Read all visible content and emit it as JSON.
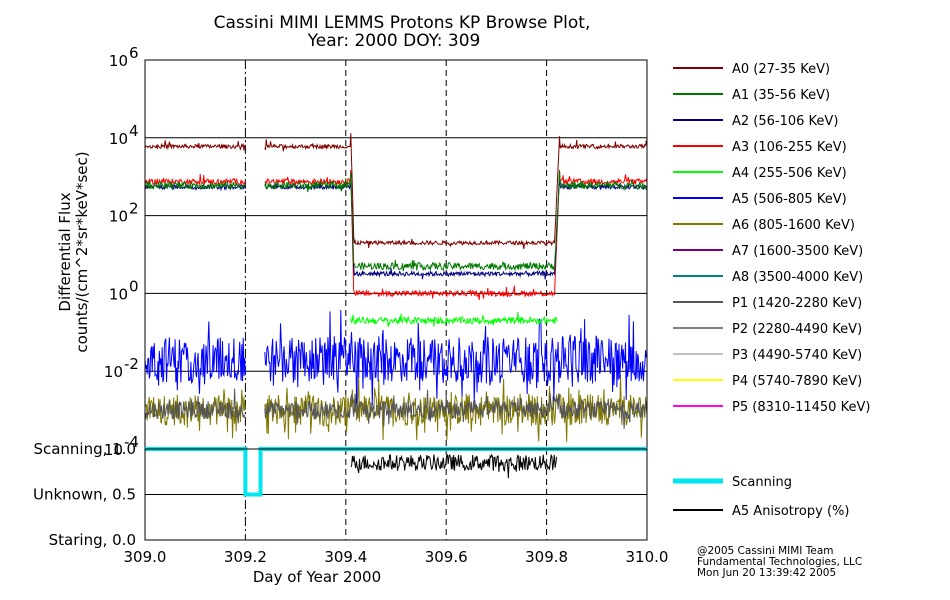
{
  "chart_data": [
    {
      "type": "line",
      "title": "Cassini MIMI LEMMS Protons KP Browse Plot,",
      "subtitle": "Year: 2000 DOY: 309",
      "xlabel": "Day of Year 2000",
      "ylabel": "Differential Flux",
      "ylabel2": "counts/(cm^2*sr*keV*sec)",
      "xlim": [
        309.0,
        310.0
      ],
      "ylim_log10": [
        -4,
        6
      ],
      "y_scale": "log",
      "x_ticks": [
        "309.0",
        "309.2",
        "309.4",
        "309.6",
        "309.8",
        "310.0"
      ],
      "y_ticks": [
        {
          "base": "10",
          "exp": "6"
        },
        {
          "base": "10",
          "exp": "4"
        },
        {
          "base": "10",
          "exp": "2"
        },
        {
          "base": "10",
          "exp": "0"
        },
        {
          "base": "10",
          "exp": "-2"
        },
        {
          "base": "10",
          "exp": "-4"
        }
      ],
      "grid": true,
      "vertical_dashed_lines_x": [
        309.2,
        309.4,
        309.6,
        309.8
      ],
      "data_gap_x": [
        309.2,
        309.23
      ],
      "transition_x": [
        309.41,
        309.82
      ],
      "legend_placement": "right",
      "series": [
        {
          "name": "A0 (27-35 KeV)",
          "color": "#800000",
          "outside_level": 6000,
          "inside_level": 20
        },
        {
          "name": "A1 (35-56 KeV)",
          "color": "#007800",
          "outside_level": 600,
          "inside_level": 5
        },
        {
          "name": "A2 (56-106 KeV)",
          "color": "#000080",
          "outside_level": 550,
          "inside_level": 3.2
        },
        {
          "name": "A3 (106-255 KeV)",
          "color": "#ff0000",
          "outside_level": 750,
          "inside_level": 1
        },
        {
          "name": "A4 (255-506 KeV)",
          "color": "#00ff00",
          "outside_level": null,
          "inside_level": 0.2
        },
        {
          "name": "A5 (506-805 KeV)",
          "color": "#0000ff",
          "outside_level": 0.02,
          "inside_level": 0.02
        },
        {
          "name": "A6 (805-1600 KeV)",
          "color": "#807800",
          "outside_level": 0.001,
          "inside_level": 0.001
        },
        {
          "name": "A7 (1600-3500 KeV)",
          "color": "#800080",
          "outside_level": null,
          "inside_level": null
        },
        {
          "name": "A8 (3500-4000 KeV)",
          "color": "#008080",
          "outside_level": null,
          "inside_level": null
        },
        {
          "name": "P1 (1420-2280 KeV)",
          "color": "#555555",
          "outside_level": 0.001,
          "inside_level": 0.001
        },
        {
          "name": "P2 (2280-4490 KeV)",
          "color": "#808080",
          "outside_level": null,
          "inside_level": null
        },
        {
          "name": "P3 (4490-5740 KeV)",
          "color": "#c0c0c0",
          "outside_level": null,
          "inside_level": null
        },
        {
          "name": "P4 (5740-7890 KeV)",
          "color": "#ffff00",
          "outside_level": null,
          "inside_level": null
        },
        {
          "name": "P5 (8310-11450 KeV)",
          "color": "#ff00ff",
          "outside_level": null,
          "inside_level": null
        }
      ]
    },
    {
      "type": "line",
      "xlim": [
        309.0,
        310.0
      ],
      "ylim": [
        0.0,
        1.0
      ],
      "y_ticks": [
        "Scanning, 1.0",
        "Unknown, 0.5",
        "Staring, 0.0"
      ],
      "x_ticks": [
        "309.0",
        "309.2",
        "309.4",
        "309.6",
        "309.8",
        "310.0"
      ],
      "xlabel": "Day of Year 2000",
      "series": [
        {
          "name": "Scanning",
          "color": "#00e5ee",
          "points": [
            [
              309.0,
              1.0
            ],
            [
              309.2,
              1.0
            ],
            [
              309.2,
              0.5
            ],
            [
              309.23,
              0.5
            ],
            [
              309.23,
              1.0
            ],
            [
              310.0,
              1.0
            ]
          ]
        },
        {
          "name": "A5 Anisotropy (%)",
          "color": "#000000",
          "x_range": [
            309.41,
            309.82
          ],
          "mean_value": 0.85
        }
      ]
    }
  ],
  "credit": {
    "line1": "@2005 Cassini MIMI Team",
    "line2": "Fundamental Technologies, LLC",
    "line3": "Mon Jun 20 13:39:42 2005"
  }
}
